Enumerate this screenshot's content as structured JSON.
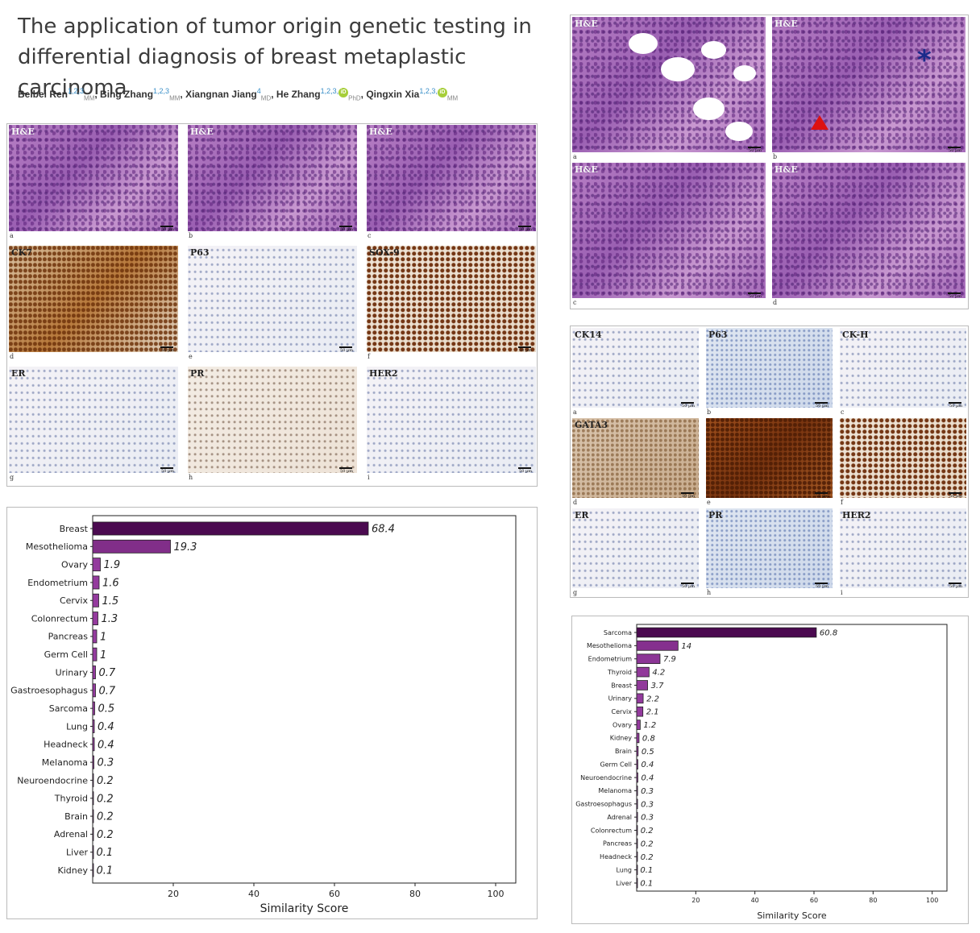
{
  "paper": {
    "title": "The application of tumor origin genetic testing in differential diagnosis of breast metaplastic carcinoma",
    "authors": [
      {
        "name": "Beibei Ren",
        "aff": "1,2,3",
        "degree": "MM",
        "orcid": false
      },
      {
        "name": "Bing Zhang",
        "aff": "1,2,3",
        "degree": "MM",
        "orcid": false
      },
      {
        "name": "Xiangnan Jiang",
        "aff": "4",
        "degree": "MD",
        "orcid": false
      },
      {
        "name": "He Zhang",
        "aff": "1,2,3,",
        "degree": "PhD",
        "orcid": true
      },
      {
        "name": "Qingxin Xia",
        "aff": "1,2,3,",
        "degree": "MM",
        "orcid": true
      }
    ]
  },
  "figure_left": {
    "scale_text": "50 µm",
    "panels": [
      {
        "stain": "H&E",
        "letter": "a",
        "style": "he",
        "light": true
      },
      {
        "stain": "H&E",
        "letter": "b",
        "style": "he",
        "light": true
      },
      {
        "stain": "H&E",
        "letter": "c",
        "style": "he",
        "light": true
      },
      {
        "stain": "CK7",
        "letter": "d",
        "style": "brown",
        "light": false
      },
      {
        "stain": "P63",
        "letter": "e",
        "style": "pale",
        "light": false
      },
      {
        "stain": "SOX-9",
        "letter": "f",
        "style": "brownspots",
        "light": false
      },
      {
        "stain": "ER",
        "letter": "g",
        "style": "pale",
        "light": false
      },
      {
        "stain": "PR",
        "letter": "h",
        "style": "paletan",
        "light": false
      },
      {
        "stain": "HER2",
        "letter": "i",
        "style": "pale",
        "light": false
      }
    ]
  },
  "figure_right_he": {
    "scale_text": "50 µm",
    "panels": [
      {
        "stain": "H&E",
        "letter": "a"
      },
      {
        "stain": "H&E",
        "letter": "b"
      },
      {
        "stain": "H&E",
        "letter": "c"
      },
      {
        "stain": "H&E",
        "letter": "d"
      }
    ]
  },
  "figure_right_ihc": {
    "scale_text": "50 µm",
    "panels": [
      {
        "stain": "CK14",
        "letter": "a",
        "style": "pale"
      },
      {
        "stain": "P63",
        "letter": "b",
        "style": "paleb"
      },
      {
        "stain": "CK-H",
        "letter": "c",
        "style": "pale"
      },
      {
        "stain": "GATA3",
        "letter": "d",
        "style": "tan"
      },
      {
        "stain": "",
        "letter": "e",
        "style": "brownd"
      },
      {
        "stain": "",
        "letter": "f",
        "style": "brownspots"
      },
      {
        "stain": "ER",
        "letter": "g",
        "style": "pale"
      },
      {
        "stain": "PR",
        "letter": "h",
        "style": "paleb"
      },
      {
        "stain": "HER2",
        "letter": "i",
        "style": "pale"
      }
    ]
  },
  "chart_data": [
    {
      "type": "bar",
      "orientation": "horizontal",
      "xlabel": "Similarity Score",
      "xlim": [
        0,
        105
      ],
      "xticks": [
        20,
        40,
        60,
        80,
        100
      ],
      "categories": [
        "Breast",
        "Mesothelioma",
        "Ovary",
        "Endometrium",
        "Cervix",
        "Colonrectum",
        "Pancreas",
        "Germ Cell",
        "Urinary",
        "Gastroesophagus",
        "Sarcoma",
        "Lung",
        "Headneck",
        "Melanoma",
        "Neuroendocrine",
        "Thyroid",
        "Brain",
        "Adrenal",
        "Liver",
        "Kidney"
      ],
      "values": [
        68.4,
        19.3,
        1.9,
        1.6,
        1.5,
        1.3,
        1,
        1,
        0.7,
        0.7,
        0.5,
        0.4,
        0.4,
        0.3,
        0.2,
        0.2,
        0.2,
        0.2,
        0.1,
        0.1
      ],
      "value_labels": [
        "68.4",
        "19.3",
        "1.9",
        "1.6",
        "1.5",
        "1.3",
        "1",
        "1",
        "0.7",
        "0.7",
        "0.5",
        "0.4",
        "0.4",
        "0.3",
        "0.2",
        "0.2",
        "0.2",
        "0.2",
        "0.1",
        "0.1"
      ]
    },
    {
      "type": "bar",
      "orientation": "horizontal",
      "xlabel": "Similarity Score",
      "xlim": [
        0,
        105
      ],
      "xticks": [
        20,
        40,
        60,
        80,
        100
      ],
      "categories": [
        "Sarcoma",
        "Mesothelioma",
        "Endometrium",
        "Thyroid",
        "Breast",
        "Urinary",
        "Cervix",
        "Ovary",
        "Kidney",
        "Brain",
        "Germ Cell",
        "Neuroendocrine",
        "Melanoma",
        "Gastroesophagus",
        "Adrenal",
        "Colonrectum",
        "Pancreas",
        "Headneck",
        "Lung",
        "Liver"
      ],
      "values": [
        60.8,
        14,
        7.9,
        4.2,
        3.7,
        2.2,
        2.1,
        1.2,
        0.8,
        0.5,
        0.4,
        0.4,
        0.3,
        0.3,
        0.3,
        0.2,
        0.2,
        0.2,
        0.1,
        0.1
      ],
      "value_labels": [
        "60.8",
        "14",
        "7.9",
        "4.2",
        "3.7",
        "2.2",
        "2.1",
        "1.2",
        "0.8",
        "0.5",
        "0.4",
        "0.4",
        "0.3",
        "0.3",
        "0.3",
        "0.2",
        "0.2",
        "0.2",
        "0.1",
        "0.1"
      ]
    }
  ]
}
